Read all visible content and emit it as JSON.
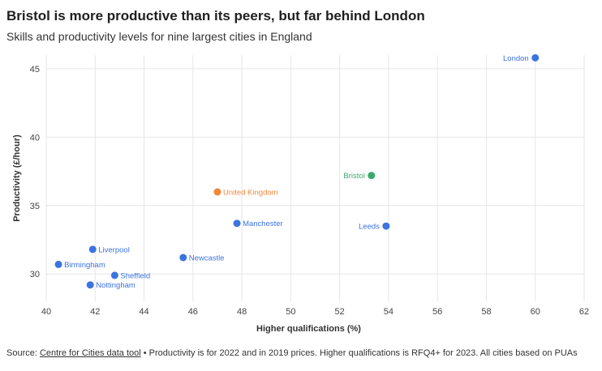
{
  "header": {
    "title": "Bristol is more productive than its peers, but far behind London",
    "subtitle": "Skills and productivity levels for nine largest cities in England"
  },
  "footer": {
    "prefix": "Source: ",
    "link_text": "Centre for Cities data tool",
    "note": " • Productivity is for 2022 and in 2019 prices. Higher qualifications is RFQ4+ for 2023. All cities based on PUAs"
  },
  "chart_data": {
    "type": "scatter",
    "xlabel": "Higher qualifications (%)",
    "ylabel": "Productivity (£/hour)",
    "xlim": [
      40,
      62
    ],
    "ylim": [
      28,
      46
    ],
    "xticks": [
      40,
      42,
      44,
      46,
      48,
      50,
      52,
      54,
      56,
      58,
      60,
      62
    ],
    "yticks": [
      30,
      35,
      40,
      45
    ],
    "grid": true,
    "colors": {
      "city": "#3b73e0",
      "bristol": "#3aaa6b",
      "uk": "#f0883a"
    },
    "points": [
      {
        "label": "London",
        "x": 60.0,
        "y": 45.8,
        "group": "city",
        "label_side": "left"
      },
      {
        "label": "Bristol",
        "x": 53.3,
        "y": 37.2,
        "group": "bristol",
        "label_side": "left"
      },
      {
        "label": "United Kingdom",
        "x": 47.0,
        "y": 36.0,
        "group": "uk",
        "label_side": "right"
      },
      {
        "label": "Manchester",
        "x": 47.8,
        "y": 33.7,
        "group": "city",
        "label_side": "right"
      },
      {
        "label": "Leeds",
        "x": 53.9,
        "y": 33.5,
        "group": "city",
        "label_side": "left"
      },
      {
        "label": "Liverpool",
        "x": 41.9,
        "y": 31.8,
        "group": "city",
        "label_side": "right"
      },
      {
        "label": "Newcastle",
        "x": 45.6,
        "y": 31.2,
        "group": "city",
        "label_side": "right"
      },
      {
        "label": "Birmingham",
        "x": 40.5,
        "y": 30.7,
        "group": "city",
        "label_side": "right"
      },
      {
        "label": "Sheffield",
        "x": 42.8,
        "y": 29.9,
        "group": "city",
        "label_side": "right"
      },
      {
        "label": "Nottingham",
        "x": 41.8,
        "y": 29.2,
        "group": "city",
        "label_side": "right"
      }
    ]
  }
}
